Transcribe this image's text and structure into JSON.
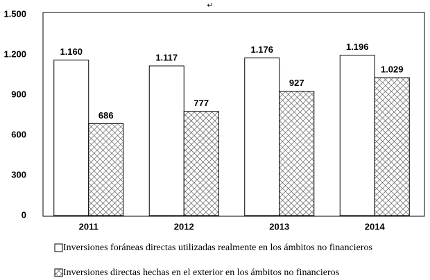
{
  "chart_data": {
    "type": "bar",
    "annotation": "↵",
    "categories": [
      "2011",
      "2012",
      "2013",
      "2014"
    ],
    "series": [
      {
        "name": "Inversiones foráneas directas utilizadas realmente en los ámbitos no financieros",
        "color": "#ffffff",
        "values": [
          1160,
          1117,
          1176,
          1196
        ],
        "value_labels": [
          "1.160",
          "1.117",
          "1.176",
          "1.196"
        ]
      },
      {
        "name": "Inversiones directas hechas en el exterior en los ámbitos no financieros",
        "color": "#555555",
        "pattern": "crosshatch",
        "values": [
          686,
          777,
          927,
          1029
        ],
        "value_labels": [
          "686",
          "777",
          "927",
          "1.029"
        ]
      }
    ],
    "ylim": [
      0,
      1500
    ],
    "yticks": [
      0,
      300,
      600,
      900,
      {
        "value": 1200,
        "label": "1.200"
      },
      {
        "value": 1500,
        "label": "1.500"
      }
    ],
    "grid": false,
    "legend": "bottom"
  }
}
